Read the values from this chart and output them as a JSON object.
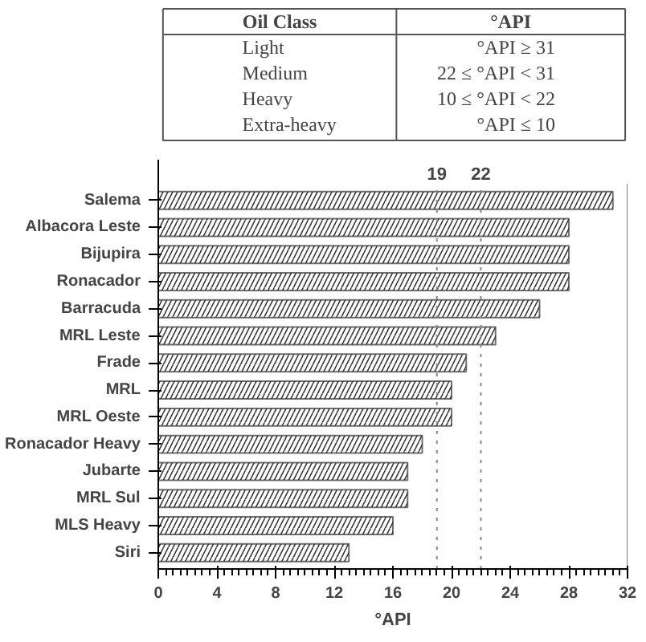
{
  "chart_data": {
    "type": "bar",
    "orientation": "horizontal",
    "xlabel": "°API",
    "categories": [
      "Salema",
      "Albacora Leste",
      "Bijupira",
      "Ronacador",
      "Barracuda",
      "MRL Leste",
      "Frade",
      "MRL",
      "MRL Oeste",
      "Ronacador Heavy",
      "Jubarte",
      "MRL Sul",
      "MLS Heavy",
      "Siri"
    ],
    "values": [
      31,
      28,
      28,
      28,
      26,
      23,
      21,
      20,
      20,
      18,
      17,
      17,
      16,
      13
    ],
    "color": "#333333",
    "xlim": [
      0,
      32
    ],
    "xticks": [
      0,
      4,
      8,
      12,
      16,
      20,
      24,
      28,
      32
    ],
    "grid": false,
    "ref_lines": [
      {
        "axis": "x",
        "value": 19,
        "label": "19",
        "line_style": "dotted",
        "color": "#888888"
      },
      {
        "axis": "x",
        "value": 22,
        "label": "22",
        "line_style": "dotted",
        "color": "#888888"
      }
    ],
    "annotations": [
      "Oil Class",
      "°API",
      "Light",
      "°API ≥ 31",
      "Medium",
      "22 ≤ °API < 31",
      "Heavy",
      "10 ≤ °API < 22",
      "Extra-heavy",
      "°API ≤ 10"
    ]
  }
}
